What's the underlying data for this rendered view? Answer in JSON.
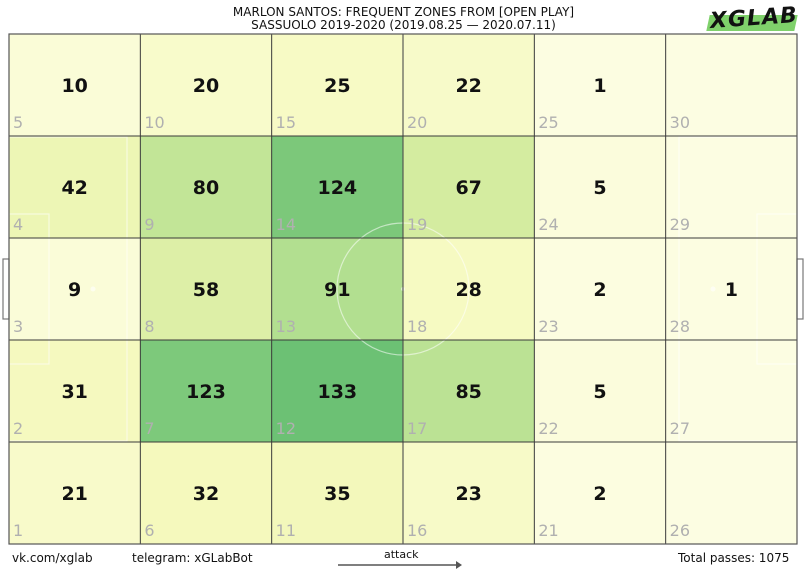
{
  "header": {
    "title_line1": "MARLON SANTOS: FREQUENT ZONES FROM [OPEN PLAY]",
    "title_line2": "SASSUOLO 2019-2020 (2019.08.25 — 2020.07.11)"
  },
  "logo": {
    "text": "XGLAB",
    "accent": "#7fd16b"
  },
  "footer": {
    "vk": "vk.com/xglab",
    "telegram": "telegram: xGLabBot",
    "attack_label": "attack",
    "total": "Total passes: 1075"
  },
  "chart_data": {
    "type": "heatmap",
    "title": "MARLON SANTOS: FREQUENT ZONES FROM [OPEN PLAY]",
    "subtitle": "SASSUOLO 2019-2020 (2019.08.25 — 2020.07.11)",
    "colormap": [
      "#fcfde2",
      "#f5f9bc",
      "#d5eca0",
      "#a6da8a",
      "#6cc174"
    ],
    "max_value": 133,
    "columns": 6,
    "rows": 5,
    "grid": [
      [
        {
          "zone": "5",
          "count": 10
        },
        {
          "zone": "10",
          "count": 20
        },
        {
          "zone": "15",
          "count": 25
        },
        {
          "zone": "20",
          "count": 22
        },
        {
          "zone": "25",
          "count": 1
        },
        {
          "zone": "30",
          "count": 0
        }
      ],
      [
        {
          "zone": "4",
          "count": 42
        },
        {
          "zone": "9",
          "count": 80
        },
        {
          "zone": "14",
          "count": 124
        },
        {
          "zone": "19",
          "count": 67
        },
        {
          "zone": "24",
          "count": 5
        },
        {
          "zone": "29",
          "count": 0
        }
      ],
      [
        {
          "zone": "3",
          "count": 9
        },
        {
          "zone": "8",
          "count": 58
        },
        {
          "zone": "13",
          "count": 91
        },
        {
          "zone": "18",
          "count": 28
        },
        {
          "zone": "23",
          "count": 2
        },
        {
          "zone": "28",
          "count": 1
        }
      ],
      [
        {
          "zone": "2",
          "count": 31
        },
        {
          "zone": "7",
          "count": 123
        },
        {
          "zone": "12",
          "count": 133
        },
        {
          "zone": "17",
          "count": 85
        },
        {
          "zone": "22",
          "count": 5
        },
        {
          "zone": "27",
          "count": 0
        }
      ],
      [
        {
          "zone": "1",
          "count": 21
        },
        {
          "zone": "6",
          "count": 32
        },
        {
          "zone": "11",
          "count": 35
        },
        {
          "zone": "16",
          "count": 23
        },
        {
          "zone": "21",
          "count": 2
        },
        {
          "zone": "26",
          "count": 0
        }
      ]
    ]
  }
}
